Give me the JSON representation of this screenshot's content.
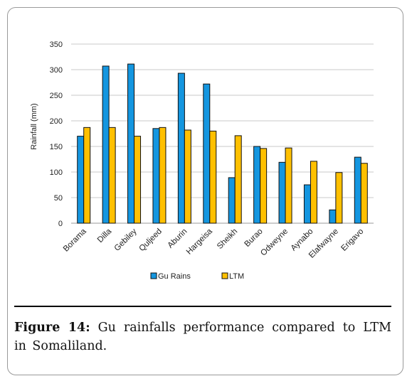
{
  "figure": {
    "label": "Figure 14:",
    "text": "Gu rainfalls performance compared to LTM in Somaliland."
  },
  "colors": {
    "gu_rains": "#1496e0",
    "ltm": "#ffc000",
    "bar_outline": "#111111",
    "gridline": "#c8c8c8"
  },
  "chart_data": {
    "type": "bar",
    "ylabel": "Rainfall (mm)",
    "xlabel": "",
    "ylim": [
      0,
      350
    ],
    "yticks": [
      0,
      50,
      100,
      150,
      200,
      250,
      300,
      350
    ],
    "grid": true,
    "legend_position": "bottom",
    "categories": [
      "Borama",
      "Dilla",
      "Gebiley",
      "Quljeed",
      "Aburin",
      "Hargeisa",
      "Sheikh",
      "Burao",
      "Odweyne",
      "Aynabo",
      "Elafwayne",
      "Erigavo"
    ],
    "series": [
      {
        "name": "Gu Rains",
        "values": [
          170,
          307,
          311,
          185,
          293,
          272,
          89,
          150,
          119,
          75,
          26,
          129
        ]
      },
      {
        "name": "LTM",
        "values": [
          187,
          187,
          170,
          187,
          182,
          180,
          171,
          146,
          147,
          121,
          99,
          117
        ]
      }
    ]
  }
}
